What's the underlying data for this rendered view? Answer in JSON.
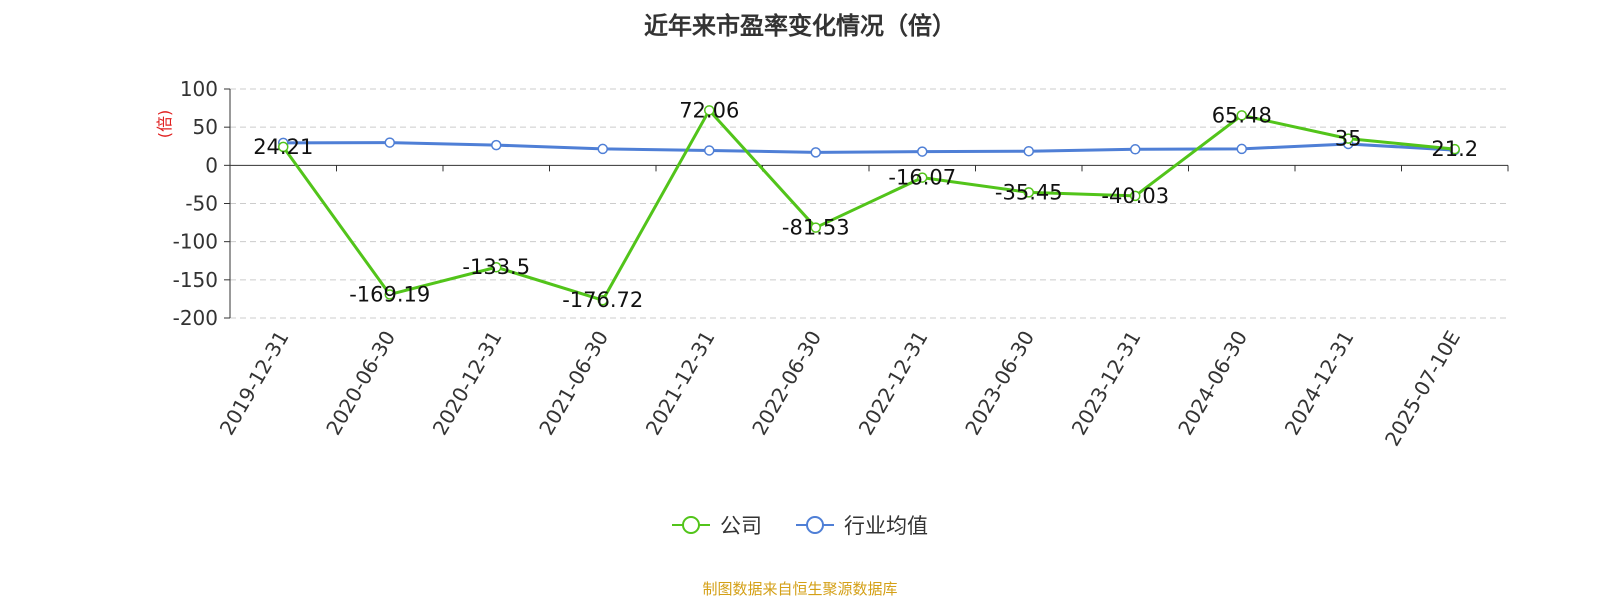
{
  "chart_data": {
    "type": "line",
    "title": "近年来市盈率变化情况（倍）",
    "ylabel": "(倍)",
    "categories": [
      "2019-12-31",
      "2020-06-30",
      "2020-12-31",
      "2021-06-30",
      "2021-12-31",
      "2022-06-30",
      "2022-12-31",
      "2023-06-30",
      "2023-12-31",
      "2024-06-30",
      "2024-12-31",
      "2025-07-10E"
    ],
    "ylim": [
      -200,
      100
    ],
    "yticks": [
      100,
      50,
      0,
      -50,
      -100,
      -150,
      -200
    ],
    "grid": true,
    "legend_position": "bottom",
    "series": [
      {
        "name": "公司",
        "color": "#52c41a",
        "values": [
          24.21,
          -169.19,
          -133.5,
          -176.72,
          72.06,
          -81.53,
          -16.07,
          -35.45,
          -40.03,
          65.48,
          35,
          21.2
        ],
        "labels": [
          "24.21",
          "-169.19",
          "-133.5",
          "-176.72",
          "72.06",
          "-81.53",
          "-16.07",
          "-35.45",
          "-40.03",
          "65.48",
          "35",
          "21.2"
        ]
      },
      {
        "name": "行业均值",
        "color": "#4f7fd6",
        "values": [
          29.5,
          29.8,
          26.5,
          21.5,
          19.5,
          17,
          18,
          18.5,
          21,
          21.5,
          28,
          20
        ]
      }
    ]
  },
  "source": "制图数据来自恒生聚源数据库"
}
